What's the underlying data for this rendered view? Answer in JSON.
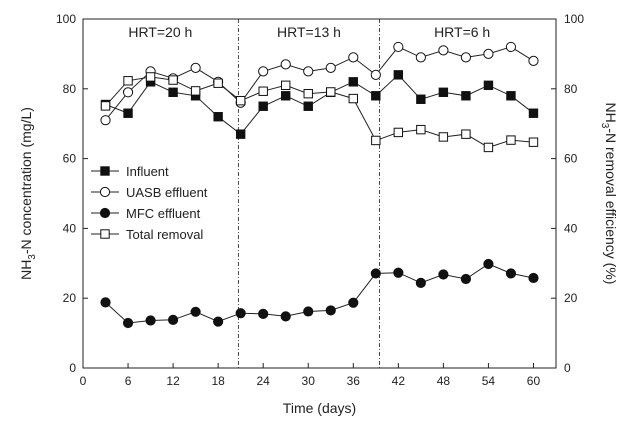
{
  "chart_data": {
    "type": "line",
    "xlabel": "Time (days)",
    "ylabel_left": {
      "main": "NH",
      "sub": "3",
      "rest": "-N concentration (mg/L)"
    },
    "ylabel_right": {
      "main": "NH",
      "sub": "3",
      "rest": "-N removal efficiency (%)"
    },
    "xlim": [
      0,
      63
    ],
    "ylim_left": [
      0,
      100
    ],
    "ylim_right": [
      0,
      100
    ],
    "xticks": [
      0,
      6,
      12,
      18,
      24,
      30,
      36,
      42,
      48,
      54,
      60
    ],
    "yticks_left": [
      0,
      20,
      40,
      60,
      80,
      100
    ],
    "yticks_right": [
      0,
      20,
      40,
      60,
      80,
      100
    ],
    "grid": false,
    "legend_position": "left",
    "phase_dividers": [
      20.7,
      39.5
    ],
    "annotations": [
      {
        "text": "HRT=20 h",
        "x": 10.3
      },
      {
        "text": "HRT=13 h",
        "x": 30.1
      },
      {
        "text": "HRT=6 h",
        "x": 50.5
      }
    ],
    "series": [
      {
        "name": "Influent",
        "axis": "left",
        "marker": "filled-square",
        "x": [
          3,
          6,
          9,
          12,
          15,
          18,
          21,
          24,
          27,
          30,
          33,
          36,
          39,
          42,
          45,
          48,
          51,
          54,
          57,
          60
        ],
        "values": [
          75.5,
          73,
          82,
          79,
          78,
          72,
          67,
          75,
          78,
          75,
          79,
          82,
          78,
          84,
          77,
          79,
          78,
          81,
          78,
          73
        ]
      },
      {
        "name": "UASB effluent",
        "axis": "left",
        "marker": "open-circle",
        "x": [
          3,
          6,
          9,
          12,
          15,
          18,
          21,
          24,
          27,
          30,
          33,
          36,
          39,
          42,
          45,
          48,
          51,
          54,
          57,
          60
        ],
        "values": [
          71,
          79,
          85,
          83,
          86,
          82,
          76,
          85,
          87,
          85,
          86,
          89,
          84,
          92,
          89,
          91,
          89,
          90,
          92,
          88
        ]
      },
      {
        "name": "MFC effluent",
        "axis": "left",
        "marker": "filled-circle",
        "x": [
          3,
          6,
          9,
          12,
          15,
          18,
          21,
          24,
          27,
          30,
          33,
          36,
          39,
          42,
          45,
          48,
          51,
          54,
          57,
          60
        ],
        "values": [
          18.8,
          12.9,
          13.6,
          13.8,
          16.1,
          13.3,
          15.7,
          15.5,
          14.8,
          16.2,
          16.5,
          18.7,
          27.1,
          27.3,
          24.4,
          26.8,
          25.5,
          29.8,
          27.1,
          25.8
        ]
      },
      {
        "name": "Total removal",
        "axis": "right",
        "marker": "open-square",
        "x": [
          3,
          6,
          9,
          12,
          15,
          18,
          21,
          24,
          27,
          30,
          33,
          36,
          39,
          42,
          45,
          48,
          51,
          54,
          57,
          60
        ],
        "values": [
          75.1,
          82.3,
          83.4,
          82.5,
          79.4,
          81.6,
          76.6,
          79.3,
          81,
          78.6,
          79.1,
          77.2,
          65.2,
          67.5,
          68.3,
          66.2,
          67,
          63.2,
          65.3,
          64.7
        ]
      }
    ]
  }
}
